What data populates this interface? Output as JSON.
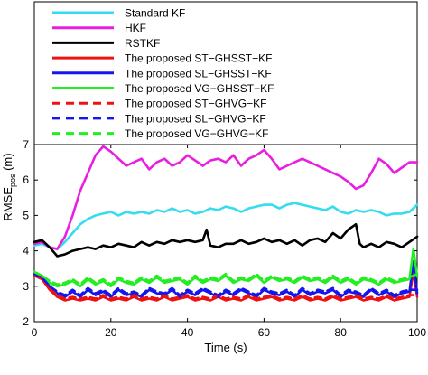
{
  "chart_data": {
    "type": "line",
    "title": "",
    "xlabel": "Time (s)",
    "ylabel_main": "RMSE",
    "ylabel_sub": "pos",
    "ylabel_unit": " (m)",
    "xlim": [
      0,
      100
    ],
    "ylim": [
      2,
      7
    ],
    "xticks": [
      0,
      20,
      40,
      60,
      80,
      100
    ],
    "yticks": [
      2,
      3,
      4,
      5,
      6,
      7
    ],
    "grid": false,
    "legend_position": "top, above plot area",
    "series": [
      {
        "name": "Standard KF",
        "color": "#33ddee",
        "dash": "solid",
        "x": [
          0,
          2,
          4,
          6,
          8,
          10,
          12,
          14,
          16,
          18,
          20,
          22,
          24,
          26,
          28,
          30,
          32,
          34,
          36,
          38,
          40,
          42,
          44,
          46,
          48,
          50,
          52,
          54,
          56,
          58,
          60,
          62,
          64,
          66,
          68,
          70,
          72,
          74,
          76,
          78,
          80,
          82,
          84,
          86,
          88,
          90,
          92,
          94,
          96,
          98,
          100
        ],
        "y": [
          4.15,
          4.2,
          4.1,
          4.05,
          4.25,
          4.5,
          4.75,
          4.9,
          5.0,
          5.05,
          5.1,
          5.0,
          5.1,
          5.05,
          5.1,
          5.05,
          5.15,
          5.1,
          5.2,
          5.1,
          5.15,
          5.05,
          5.1,
          5.2,
          5.15,
          5.25,
          5.2,
          5.1,
          5.2,
          5.25,
          5.3,
          5.3,
          5.2,
          5.3,
          5.35,
          5.3,
          5.25,
          5.2,
          5.15,
          5.25,
          5.1,
          5.05,
          5.15,
          5.1,
          5.15,
          5.1,
          5.0,
          5.05,
          5.05,
          5.1,
          5.3
        ]
      },
      {
        "name": "HKF",
        "color": "#e81ee0",
        "dash": "solid",
        "x": [
          0,
          2,
          4,
          6,
          8,
          10,
          12,
          14,
          16,
          18,
          20,
          22,
          24,
          26,
          28,
          30,
          32,
          34,
          36,
          38,
          40,
          42,
          44,
          46,
          48,
          50,
          52,
          54,
          56,
          58,
          60,
          62,
          64,
          66,
          68,
          70,
          72,
          74,
          76,
          78,
          80,
          82,
          84,
          86,
          88,
          90,
          92,
          94,
          96,
          98,
          100
        ],
        "y": [
          4.2,
          4.25,
          4.1,
          4.05,
          4.4,
          5.0,
          5.7,
          6.2,
          6.7,
          6.95,
          6.8,
          6.6,
          6.4,
          6.5,
          6.6,
          6.3,
          6.5,
          6.6,
          6.4,
          6.5,
          6.7,
          6.55,
          6.4,
          6.55,
          6.6,
          6.5,
          6.7,
          6.4,
          6.6,
          6.7,
          6.85,
          6.6,
          6.3,
          6.4,
          6.5,
          6.6,
          6.5,
          6.4,
          6.3,
          6.2,
          6.1,
          5.95,
          5.75,
          5.85,
          6.2,
          6.6,
          6.45,
          6.2,
          6.35,
          6.5,
          6.5
        ]
      },
      {
        "name": "RSTKF",
        "color": "#000000",
        "dash": "solid",
        "x": [
          0,
          2,
          4,
          6,
          8,
          10,
          12,
          14,
          16,
          18,
          20,
          22,
          24,
          26,
          28,
          30,
          32,
          34,
          36,
          38,
          40,
          42,
          44,
          45,
          46,
          48,
          50,
          52,
          54,
          56,
          58,
          60,
          62,
          64,
          66,
          68,
          70,
          72,
          74,
          76,
          78,
          80,
          82,
          84,
          85,
          86,
          88,
          90,
          92,
          94,
          96,
          98,
          100
        ],
        "y": [
          4.25,
          4.3,
          4.1,
          3.85,
          3.9,
          4.0,
          4.05,
          4.1,
          4.05,
          4.15,
          4.1,
          4.2,
          4.15,
          4.1,
          4.25,
          4.15,
          4.25,
          4.2,
          4.3,
          4.25,
          4.3,
          4.25,
          4.3,
          4.6,
          4.15,
          4.1,
          4.2,
          4.2,
          4.3,
          4.2,
          4.25,
          4.35,
          4.25,
          4.3,
          4.2,
          4.3,
          4.15,
          4.3,
          4.35,
          4.25,
          4.5,
          4.35,
          4.6,
          4.75,
          4.2,
          4.1,
          4.2,
          4.1,
          4.25,
          4.2,
          4.1,
          4.25,
          4.4
        ]
      },
      {
        "name": "The proposed ST−GHSST−KF",
        "color": "#ee1111",
        "dash": "solid",
        "x": [
          0,
          2,
          4,
          6,
          8,
          10,
          12,
          14,
          16,
          18,
          20,
          22,
          24,
          26,
          28,
          30,
          32,
          34,
          36,
          38,
          40,
          42,
          44,
          46,
          48,
          50,
          52,
          54,
          56,
          58,
          60,
          62,
          64,
          66,
          68,
          70,
          72,
          74,
          76,
          78,
          80,
          82,
          84,
          86,
          88,
          90,
          92,
          94,
          96,
          98,
          99,
          100
        ],
        "y": [
          3.3,
          3.2,
          2.9,
          2.7,
          2.6,
          2.65,
          2.6,
          2.65,
          2.6,
          2.7,
          2.6,
          2.65,
          2.6,
          2.7,
          2.6,
          2.65,
          2.6,
          2.7,
          2.6,
          2.65,
          2.7,
          2.6,
          2.65,
          2.6,
          2.7,
          2.6,
          2.65,
          2.6,
          2.7,
          2.6,
          2.65,
          2.7,
          2.6,
          2.65,
          2.6,
          2.7,
          2.6,
          2.65,
          2.6,
          2.7,
          2.6,
          2.65,
          2.7,
          2.6,
          2.65,
          2.6,
          2.7,
          2.6,
          2.65,
          2.7,
          3.4,
          2.7
        ]
      },
      {
        "name": "The proposed SL−GHSST−KF",
        "color": "#1515ee",
        "dash": "solid",
        "x": [
          0,
          2,
          4,
          6,
          8,
          10,
          12,
          14,
          16,
          18,
          20,
          22,
          24,
          26,
          28,
          30,
          32,
          34,
          36,
          38,
          40,
          42,
          44,
          46,
          48,
          50,
          52,
          54,
          56,
          58,
          60,
          62,
          64,
          66,
          68,
          70,
          72,
          74,
          76,
          78,
          80,
          82,
          84,
          86,
          88,
          90,
          92,
          94,
          96,
          98,
          99,
          100
        ],
        "y": [
          3.35,
          3.25,
          3.0,
          2.8,
          2.7,
          2.85,
          2.7,
          2.9,
          2.75,
          2.85,
          2.7,
          2.9,
          2.75,
          2.8,
          2.7,
          2.9,
          2.8,
          2.75,
          2.9,
          2.7,
          2.85,
          2.75,
          2.9,
          2.8,
          2.7,
          2.85,
          2.75,
          2.9,
          2.8,
          2.7,
          2.9,
          2.8,
          2.75,
          2.85,
          2.7,
          2.9,
          2.75,
          2.85,
          2.8,
          2.9,
          2.7,
          2.85,
          2.8,
          2.7,
          2.9,
          2.75,
          2.85,
          2.7,
          2.8,
          2.85,
          3.7,
          2.8
        ]
      },
      {
        "name": "The proposed VG−GHSST−KF",
        "color": "#22ee22",
        "dash": "solid",
        "x": [
          0,
          2,
          4,
          6,
          8,
          10,
          12,
          14,
          16,
          18,
          20,
          22,
          24,
          26,
          28,
          30,
          32,
          34,
          36,
          38,
          40,
          42,
          44,
          46,
          48,
          50,
          52,
          54,
          56,
          58,
          60,
          62,
          64,
          66,
          68,
          70,
          72,
          74,
          76,
          78,
          80,
          82,
          84,
          86,
          88,
          90,
          92,
          94,
          96,
          98,
          99,
          100
        ],
        "y": [
          3.4,
          3.3,
          3.1,
          3.0,
          3.05,
          3.15,
          3.0,
          3.2,
          3.05,
          3.15,
          3.0,
          3.2,
          3.1,
          3.05,
          3.2,
          3.1,
          3.25,
          3.1,
          3.15,
          3.2,
          3.05,
          3.25,
          3.1,
          3.2,
          3.15,
          3.3,
          3.1,
          3.2,
          3.15,
          3.3,
          3.1,
          3.25,
          3.15,
          3.2,
          3.1,
          3.25,
          3.15,
          3.2,
          3.1,
          3.25,
          3.1,
          3.2,
          3.05,
          3.2,
          3.15,
          3.05,
          3.2,
          3.1,
          3.15,
          3.2,
          4.05,
          3.3
        ]
      },
      {
        "name": "The proposed ST−GHVG−KF",
        "color": "#ee1111",
        "dash": "dashed",
        "x": [
          0,
          2,
          4,
          6,
          8,
          10,
          12,
          14,
          16,
          18,
          20,
          22,
          24,
          26,
          28,
          30,
          32,
          34,
          36,
          38,
          40,
          42,
          44,
          46,
          48,
          50,
          52,
          54,
          56,
          58,
          60,
          62,
          64,
          66,
          68,
          70,
          72,
          74,
          76,
          78,
          80,
          82,
          84,
          86,
          88,
          90,
          92,
          94,
          96,
          98,
          100
        ],
        "y": [
          3.3,
          3.2,
          2.95,
          2.75,
          2.65,
          2.7,
          2.65,
          2.7,
          2.65,
          2.75,
          2.65,
          2.7,
          2.65,
          2.75,
          2.65,
          2.7,
          2.65,
          2.75,
          2.65,
          2.7,
          2.75,
          2.65,
          2.7,
          2.65,
          2.75,
          2.65,
          2.7,
          2.65,
          2.75,
          2.65,
          2.7,
          2.75,
          2.65,
          2.7,
          2.65,
          2.75,
          2.65,
          2.7,
          2.65,
          2.75,
          2.65,
          2.7,
          2.75,
          2.65,
          2.7,
          2.65,
          2.75,
          2.65,
          2.7,
          2.75,
          2.75
        ]
      },
      {
        "name": "The proposed SL−GHVG−KF",
        "color": "#1515ee",
        "dash": "dashed",
        "x": [
          0,
          2,
          4,
          6,
          8,
          10,
          12,
          14,
          16,
          18,
          20,
          22,
          24,
          26,
          28,
          30,
          32,
          34,
          36,
          38,
          40,
          42,
          44,
          46,
          48,
          50,
          52,
          54,
          56,
          58,
          60,
          62,
          64,
          66,
          68,
          70,
          72,
          74,
          76,
          78,
          80,
          82,
          84,
          86,
          88,
          90,
          92,
          94,
          96,
          98,
          100
        ],
        "y": [
          3.35,
          3.25,
          3.0,
          2.85,
          2.75,
          2.9,
          2.75,
          2.95,
          2.8,
          2.9,
          2.75,
          2.95,
          2.8,
          2.85,
          2.75,
          2.95,
          2.85,
          2.8,
          2.95,
          2.75,
          2.9,
          2.8,
          2.95,
          2.85,
          2.75,
          2.9,
          2.8,
          2.95,
          2.85,
          2.75,
          2.95,
          2.85,
          2.8,
          2.9,
          2.75,
          2.95,
          2.8,
          2.9,
          2.85,
          2.95,
          2.75,
          2.9,
          2.85,
          2.75,
          2.95,
          2.8,
          2.9,
          2.75,
          2.85,
          2.9,
          2.9
        ]
      },
      {
        "name": "The proposed VG−GHVG−KF",
        "color": "#22ee22",
        "dash": "dashed",
        "x": [
          0,
          2,
          4,
          6,
          8,
          10,
          12,
          14,
          16,
          18,
          20,
          22,
          24,
          26,
          28,
          30,
          32,
          34,
          36,
          38,
          40,
          42,
          44,
          46,
          48,
          50,
          52,
          54,
          56,
          58,
          60,
          62,
          64,
          66,
          68,
          70,
          72,
          74,
          76,
          78,
          80,
          82,
          84,
          86,
          88,
          90,
          92,
          94,
          96,
          98,
          100
        ],
        "y": [
          3.4,
          3.3,
          3.15,
          3.05,
          3.1,
          3.2,
          3.05,
          3.25,
          3.1,
          3.2,
          3.05,
          3.25,
          3.15,
          3.1,
          3.25,
          3.15,
          3.3,
          3.15,
          3.2,
          3.25,
          3.1,
          3.3,
          3.15,
          3.25,
          3.2,
          3.35,
          3.15,
          3.25,
          3.2,
          3.35,
          3.15,
          3.3,
          3.2,
          3.25,
          3.15,
          3.3,
          3.2,
          3.25,
          3.15,
          3.3,
          3.15,
          3.25,
          3.1,
          3.25,
          3.2,
          3.1,
          3.25,
          3.15,
          3.2,
          3.25,
          3.35
        ]
      }
    ]
  }
}
